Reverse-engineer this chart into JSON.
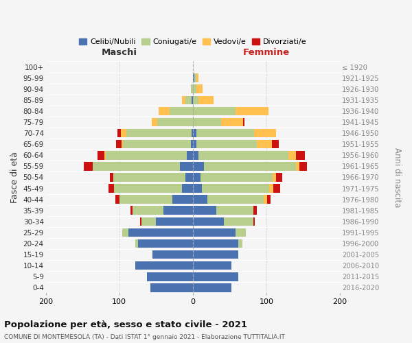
{
  "age_groups": [
    "100+",
    "95-99",
    "90-94",
    "85-89",
    "80-84",
    "75-79",
    "70-74",
    "65-69",
    "60-64",
    "55-59",
    "50-54",
    "45-49",
    "40-44",
    "35-39",
    "30-34",
    "25-29",
    "20-24",
    "15-19",
    "10-14",
    "5-9",
    "0-4"
  ],
  "birth_years": [
    "≤ 1920",
    "1921-1925",
    "1926-1930",
    "1931-1935",
    "1936-1940",
    "1941-1945",
    "1946-1950",
    "1951-1955",
    "1956-1960",
    "1961-1965",
    "1966-1970",
    "1971-1975",
    "1976-1980",
    "1981-1985",
    "1986-1990",
    "1991-1995",
    "1996-2000",
    "2001-2005",
    "2006-2010",
    "2011-2015",
    "2016-2020"
  ],
  "male_celibi": [
    0,
    0,
    0,
    2,
    0,
    0,
    2,
    3,
    8,
    18,
    10,
    15,
    28,
    40,
    50,
    88,
    75,
    55,
    78,
    62,
    58
  ],
  "male_coniugati": [
    0,
    0,
    3,
    8,
    32,
    48,
    88,
    92,
    110,
    118,
    98,
    92,
    72,
    42,
    20,
    8,
    3,
    0,
    0,
    0,
    0
  ],
  "male_vedovi": [
    0,
    0,
    0,
    5,
    15,
    8,
    8,
    2,
    2,
    0,
    0,
    0,
    0,
    0,
    0,
    0,
    0,
    0,
    0,
    0,
    0
  ],
  "male_divorziati": [
    0,
    0,
    0,
    0,
    0,
    0,
    5,
    7,
    10,
    12,
    5,
    8,
    5,
    3,
    2,
    0,
    0,
    0,
    0,
    0,
    0
  ],
  "female_nubili": [
    0,
    2,
    0,
    0,
    0,
    0,
    5,
    5,
    8,
    15,
    10,
    12,
    20,
    32,
    42,
    58,
    62,
    62,
    52,
    62,
    52
  ],
  "female_coniugate": [
    0,
    3,
    5,
    8,
    58,
    38,
    78,
    82,
    122,
    125,
    98,
    92,
    76,
    50,
    40,
    14,
    5,
    0,
    0,
    0,
    0
  ],
  "female_vedove": [
    0,
    3,
    8,
    20,
    45,
    30,
    30,
    20,
    10,
    5,
    5,
    5,
    5,
    0,
    0,
    0,
    0,
    0,
    0,
    0,
    0
  ],
  "female_divorziate": [
    0,
    0,
    0,
    0,
    0,
    2,
    0,
    10,
    12,
    10,
    8,
    10,
    5,
    5,
    2,
    0,
    0,
    0,
    0,
    0,
    0
  ],
  "color_celibi": "#4a72b0",
  "color_coniugati": "#b8ce8c",
  "color_vedovi": "#ffc050",
  "color_divorziati": "#cc1111",
  "xlim": 200,
  "title": "Popolazione per età, sesso e stato civile - 2021",
  "subtitle": "COMUNE DI MONTEMESOLA (TA) - Dati ISTAT 1° gennaio 2021 - Elaborazione TUTTITALIA.IT",
  "ylabel_left": "Fasce di età",
  "ylabel_right": "Anni di nascita",
  "label_maschi": "Maschi",
  "label_femmine": "Femmine",
  "bg_color": "#f5f5f5"
}
